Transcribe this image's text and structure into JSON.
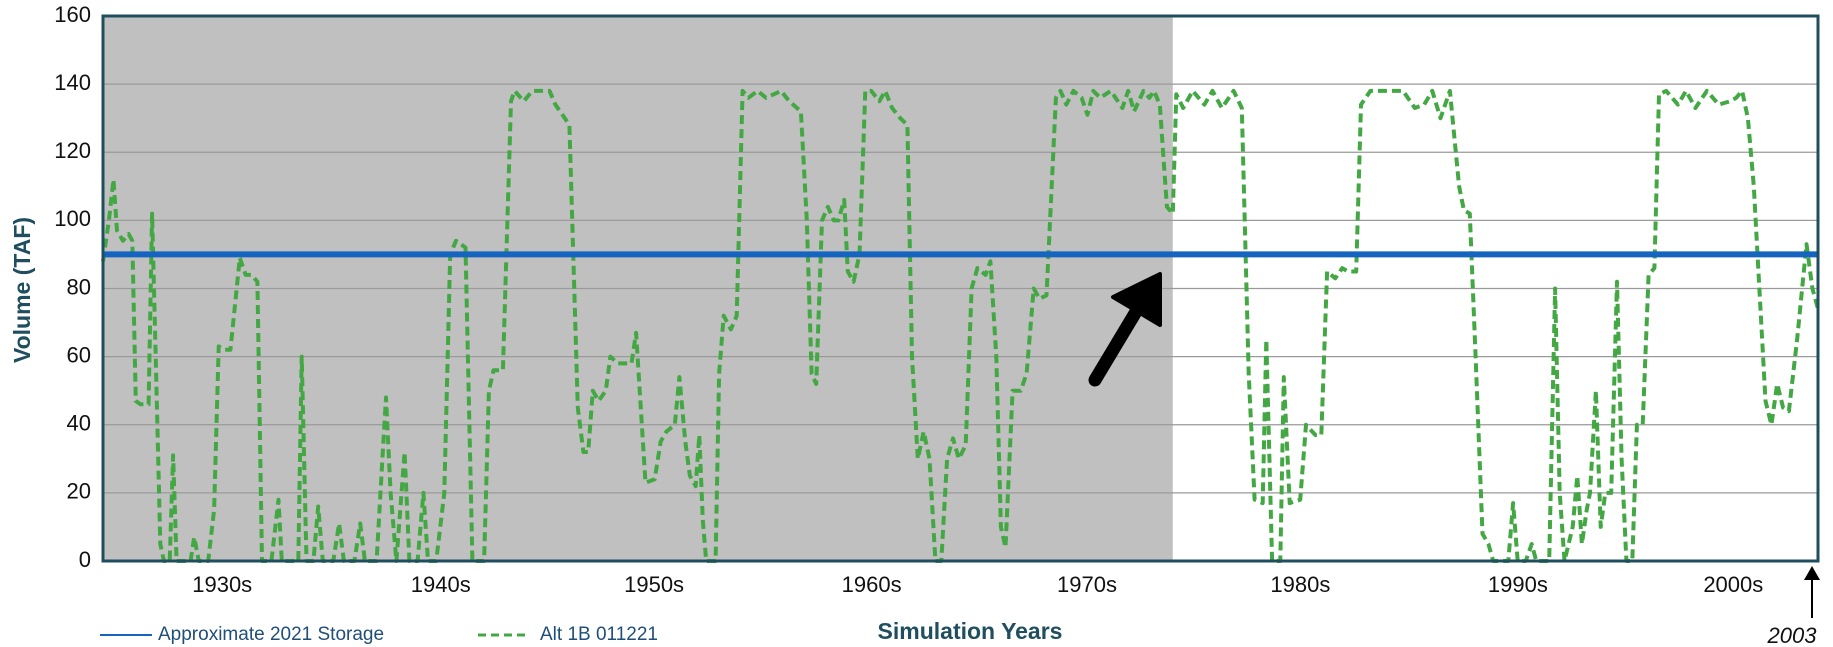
{
  "chart_data": {
    "type": "line",
    "y_label": "Volume (TAF)",
    "x_label": "Simulation Years",
    "annotation": "2003",
    "xlim": [
      1921.75,
      2003.75
    ],
    "ylim": [
      0,
      160
    ],
    "yticks": [
      0,
      20,
      40,
      60,
      80,
      100,
      120,
      140,
      160
    ],
    "xticks": [
      {
        "value": 1927.45,
        "label": "1930s"
      },
      {
        "value": 1937.9,
        "label": "1940s"
      },
      {
        "value": 1948.1,
        "label": "1950s"
      },
      {
        "value": 1958.5,
        "label": "1960s"
      },
      {
        "value": 1968.8,
        "label": "1970s"
      },
      {
        "value": 1979.0,
        "label": "1980s"
      },
      {
        "value": 1989.4,
        "label": "1990s"
      },
      {
        "value": 1999.7,
        "label": "2000s"
      }
    ],
    "grid": true,
    "shade_x": [
      1921.75,
      1972.9
    ],
    "shade_color": "#c0c0c0",
    "series": [
      {
        "name": "Approximate 2021 Storage",
        "color": "#1565c0",
        "style": "solid",
        "x": [
          1921.75,
          2003.75
        ],
        "values": [
          90,
          90
        ]
      },
      {
        "name": "Alt 1B 011221",
        "color": "#43a843",
        "style": "dashed",
        "x": [
          1921.75,
          1922.03,
          1922.25,
          1922.42,
          1922.7,
          1922.98,
          1923.15,
          1923.32,
          1923.54,
          1923.93,
          1924.1,
          1924.27,
          1924.49,
          1924.66,
          1924.94,
          1925.1,
          1925.27,
          1925.66,
          1925.94,
          1926.11,
          1926.33,
          1926.78,
          1927.06,
          1927.28,
          1927.56,
          1927.84,
          1928.01,
          1928.29,
          1928.57,
          1928.85,
          1929.13,
          1929.35,
          1929.8,
          1930.14,
          1930.3,
          1930.81,
          1931.09,
          1931.25,
          1931.48,
          1931.81,
          1932.04,
          1932.26,
          1932.76,
          1933.04,
          1933.27,
          1933.77,
          1934.05,
          1934.27,
          1934.83,
          1935.11,
          1935.28,
          1935.5,
          1935.78,
          1936.17,
          1936.4,
          1936.79,
          1937.07,
          1937.29,
          1937.68,
          1938.07,
          1938.35,
          1938.63,
          1939.08,
          1939.41,
          1939.97,
          1940.2,
          1940.42,
          1940.87,
          1941.26,
          1941.43,
          1941.87,
          1942.27,
          1943.1,
          1943.38,
          1943.83,
          1944.05,
          1944.45,
          1944.72,
          1944.95,
          1945.17,
          1945.45,
          1945.79,
          1946.01,
          1946.35,
          1946.74,
          1947.02,
          1947.24,
          1947.41,
          1947.69,
          1948.13,
          1948.41,
          1948.69,
          1949.09,
          1949.31,
          1949.59,
          1949.81,
          1950.09,
          1950.26,
          1950.43,
          1950.59,
          1951.04,
          1951.21,
          1951.43,
          1951.77,
          1952.05,
          1952.33,
          1952.61,
          1953.05,
          1953.45,
          1954.17,
          1954.56,
          1955.12,
          1955.4,
          1955.63,
          1955.85,
          1956.13,
          1956.41,
          1956.69,
          1956.91,
          1957.19,
          1957.36,
          1957.64,
          1957.92,
          1958.2,
          1958.48,
          1958.87,
          1959.15,
          1959.48,
          1959.87,
          1960.21,
          1960.43,
          1960.71,
          1960.99,
          1961.27,
          1961.55,
          1961.83,
          1962.11,
          1962.39,
          1962.67,
          1963.0,
          1963.28,
          1963.56,
          1963.95,
          1964.18,
          1964.46,
          1964.68,
          1964.9,
          1965.24,
          1965.63,
          1965.91,
          1966.25,
          1966.53,
          1966.86,
          1967.31,
          1967.53,
          1967.81,
          1968.15,
          1968.54,
          1968.82,
          1969.1,
          1969.43,
          1969.94,
          1970.49,
          1970.77,
          1971.05,
          1971.5,
          1971.78,
          1972.0,
          1972.28,
          1972.62,
          1972.9,
          1973.07,
          1973.4,
          1973.85,
          1974.41,
          1974.8,
          1975.25,
          1975.81,
          1976.2,
          1976.53,
          1976.81,
          1977.2,
          1977.37,
          1977.65,
          1978.04,
          1978.21,
          1978.49,
          1978.99,
          1979.27,
          1979.72,
          1980.0,
          1980.28,
          1980.67,
          1981.0,
          1981.28,
          1981.67,
          1981.9,
          1982.35,
          1983.35,
          1983.91,
          1984.47,
          1984.92,
          1985.31,
          1985.7,
          1986.15,
          1986.59,
          1986.82,
          1987.1,
          1987.38,
          1987.71,
          1987.99,
          1988.22,
          1988.55,
          1988.94,
          1989.17,
          1989.39,
          1989.78,
          1990.06,
          1990.28,
          1990.9,
          1991.18,
          1991.4,
          1991.63,
          1992.02,
          1992.24,
          1992.46,
          1992.69,
          1992.85,
          1993.13,
          1993.36,
          1993.58,
          1993.86,
          1994.14,
          1994.36,
          1994.59,
          1994.87,
          1995.09,
          1995.37,
          1995.65,
          1995.93,
          1996.15,
          1996.49,
          1997.05,
          1997.44,
          1997.89,
          1998.44,
          1999.0,
          1999.56,
          1999.84,
          2000.12,
          2000.4,
          2000.68,
          2001.24,
          2001.52,
          2001.8,
          2002.08,
          2002.36,
          2002.75,
          2003.2,
          2003.48,
          2003.75
        ],
        "values": [
          88,
          100,
          112,
          97,
          94,
          96,
          94,
          47,
          46,
          46,
          102,
          60,
          5,
          0,
          0,
          31,
          0,
          0,
          0,
          7,
          0,
          0,
          15,
          63,
          62,
          62,
          72,
          89,
          84,
          84,
          82,
          0,
          0,
          18,
          0,
          0,
          0,
          60,
          0,
          0,
          16,
          0,
          0,
          11,
          0,
          0,
          11,
          0,
          0,
          30,
          48,
          20,
          0,
          32,
          0,
          0,
          20,
          0,
          0,
          20,
          90,
          94,
          92,
          0,
          0,
          50,
          56,
          56,
          135,
          138,
          135,
          138,
          138,
          134,
          130,
          128,
          45,
          32,
          32,
          50,
          47,
          50,
          60,
          58,
          58,
          58,
          67,
          50,
          23,
          24,
          35,
          38,
          40,
          54,
          35,
          25,
          22,
          37,
          12,
          0,
          0,
          55,
          72,
          68,
          72,
          138,
          136,
          138,
          136,
          138,
          135,
          132,
          100,
          55,
          52,
          100,
          104,
          100,
          100,
          106,
          85,
          82,
          90,
          138,
          138,
          135,
          138,
          133,
          130,
          128,
          60,
          30,
          38,
          30,
          0,
          0,
          30,
          36,
          30,
          34,
          80,
          86,
          84,
          88,
          60,
          10,
          4,
          50,
          50,
          55,
          80,
          77,
          78,
          136,
          138,
          134,
          138,
          136,
          131,
          138,
          136,
          138,
          133,
          138,
          132,
          138,
          136,
          138,
          134,
          104,
          102,
          137,
          133,
          138,
          134,
          138,
          133,
          138,
          133,
          55,
          18,
          17,
          65,
          0,
          0,
          54,
          17,
          18,
          40,
          37,
          37,
          85,
          83,
          86,
          85,
          85,
          134,
          138,
          138,
          138,
          133,
          134,
          138,
          130,
          138,
          110,
          103,
          102,
          60,
          8,
          5,
          0,
          0,
          0,
          17,
          0,
          0,
          5,
          0,
          0,
          80,
          20,
          0,
          10,
          25,
          5,
          15,
          20,
          50,
          10,
          20,
          20,
          82,
          30,
          0,
          0,
          40,
          40,
          84,
          86,
          137,
          138,
          134,
          138,
          133,
          138,
          134,
          135,
          136,
          138,
          130,
          110,
          47,
          40,
          52,
          45,
          44,
          65,
          93,
          80,
          74
        ]
      }
    ]
  }
}
